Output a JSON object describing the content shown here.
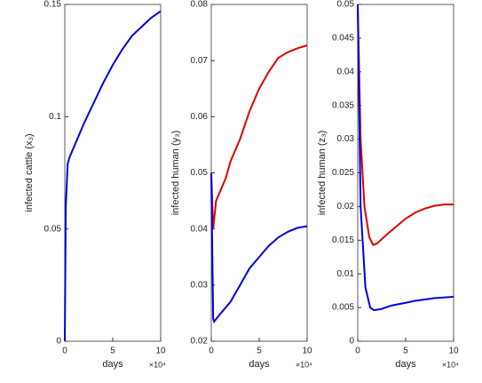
{
  "chart_data": [
    {
      "type": "line",
      "ylabel": "infected cattle (x₃)",
      "xlabel": "days",
      "x_exponent": "×10⁴",
      "xlim": [
        0,
        10
      ],
      "xticks": [
        0,
        5,
        10
      ],
      "ylim": [
        0,
        0.15
      ],
      "yticks": [
        0,
        0.05,
        0.1,
        0.15
      ],
      "series": [
        {
          "color": "#0000dd",
          "x": [
            0,
            0.1,
            0.3,
            0.5,
            1,
            2,
            3,
            4,
            5,
            6,
            7,
            8,
            9,
            10
          ],
          "values": [
            0,
            0.06,
            0.079,
            0.082,
            0.087,
            0.097,
            0.106,
            0.115,
            0.123,
            0.13,
            0.136,
            0.14,
            0.144,
            0.147
          ]
        }
      ]
    },
    {
      "type": "line",
      "ylabel": "infected human (y₃)",
      "xlabel": "days",
      "x_exponent": "×10⁴",
      "xlim": [
        0,
        10
      ],
      "xticks": [
        0,
        5,
        10
      ],
      "ylim": [
        0.02,
        0.08
      ],
      "yticks": [
        0.02,
        0.03,
        0.04,
        0.05,
        0.06,
        0.07,
        0.08
      ],
      "series": [
        {
          "color": "#dd0000",
          "x": [
            0,
            0.2,
            0.5,
            1,
            1.5,
            2,
            3,
            4,
            5,
            6,
            7,
            8,
            9,
            10
          ],
          "values": [
            0.05,
            0.04,
            0.045,
            0.047,
            0.049,
            0.052,
            0.056,
            0.061,
            0.065,
            0.068,
            0.0705,
            0.0715,
            0.0722,
            0.0727
          ]
        },
        {
          "color": "#0000dd",
          "x": [
            0,
            0.2,
            0.3,
            1,
            2,
            3,
            4,
            5,
            6,
            7,
            8,
            9,
            10
          ],
          "values": [
            0.05,
            0.024,
            0.0235,
            0.025,
            0.027,
            0.03,
            0.033,
            0.035,
            0.037,
            0.0385,
            0.0395,
            0.0402,
            0.0405
          ]
        }
      ]
    },
    {
      "type": "line",
      "ylabel": "infected human (z₃)",
      "xlabel": "days",
      "x_exponent": "×10⁴",
      "xlim": [
        0,
        10
      ],
      "xticks": [
        0,
        5,
        10
      ],
      "ylim": [
        0,
        0.05
      ],
      "yticks": [
        0,
        0.005,
        0.01,
        0.015,
        0.02,
        0.025,
        0.03,
        0.035,
        0.04,
        0.045,
        0.05
      ],
      "series": [
        {
          "color": "#dd0000",
          "x": [
            0,
            0.3,
            0.7,
            1.2,
            1.6,
            2,
            3,
            4,
            5,
            6,
            7,
            8,
            9,
            10
          ],
          "values": [
            0.05,
            0.03,
            0.02,
            0.0155,
            0.0143,
            0.0145,
            0.0158,
            0.017,
            0.0182,
            0.0191,
            0.0197,
            0.0201,
            0.0203,
            0.0203
          ]
        },
        {
          "color": "#0000dd",
          "x": [
            0,
            0.3,
            0.8,
            1.3,
            1.7,
            2.5,
            3.5,
            5,
            6,
            7,
            8,
            9,
            10
          ],
          "values": [
            0.05,
            0.02,
            0.008,
            0.005,
            0.0046,
            0.0048,
            0.0053,
            0.0057,
            0.006,
            0.0062,
            0.0064,
            0.0065,
            0.0066
          ]
        }
      ]
    }
  ]
}
